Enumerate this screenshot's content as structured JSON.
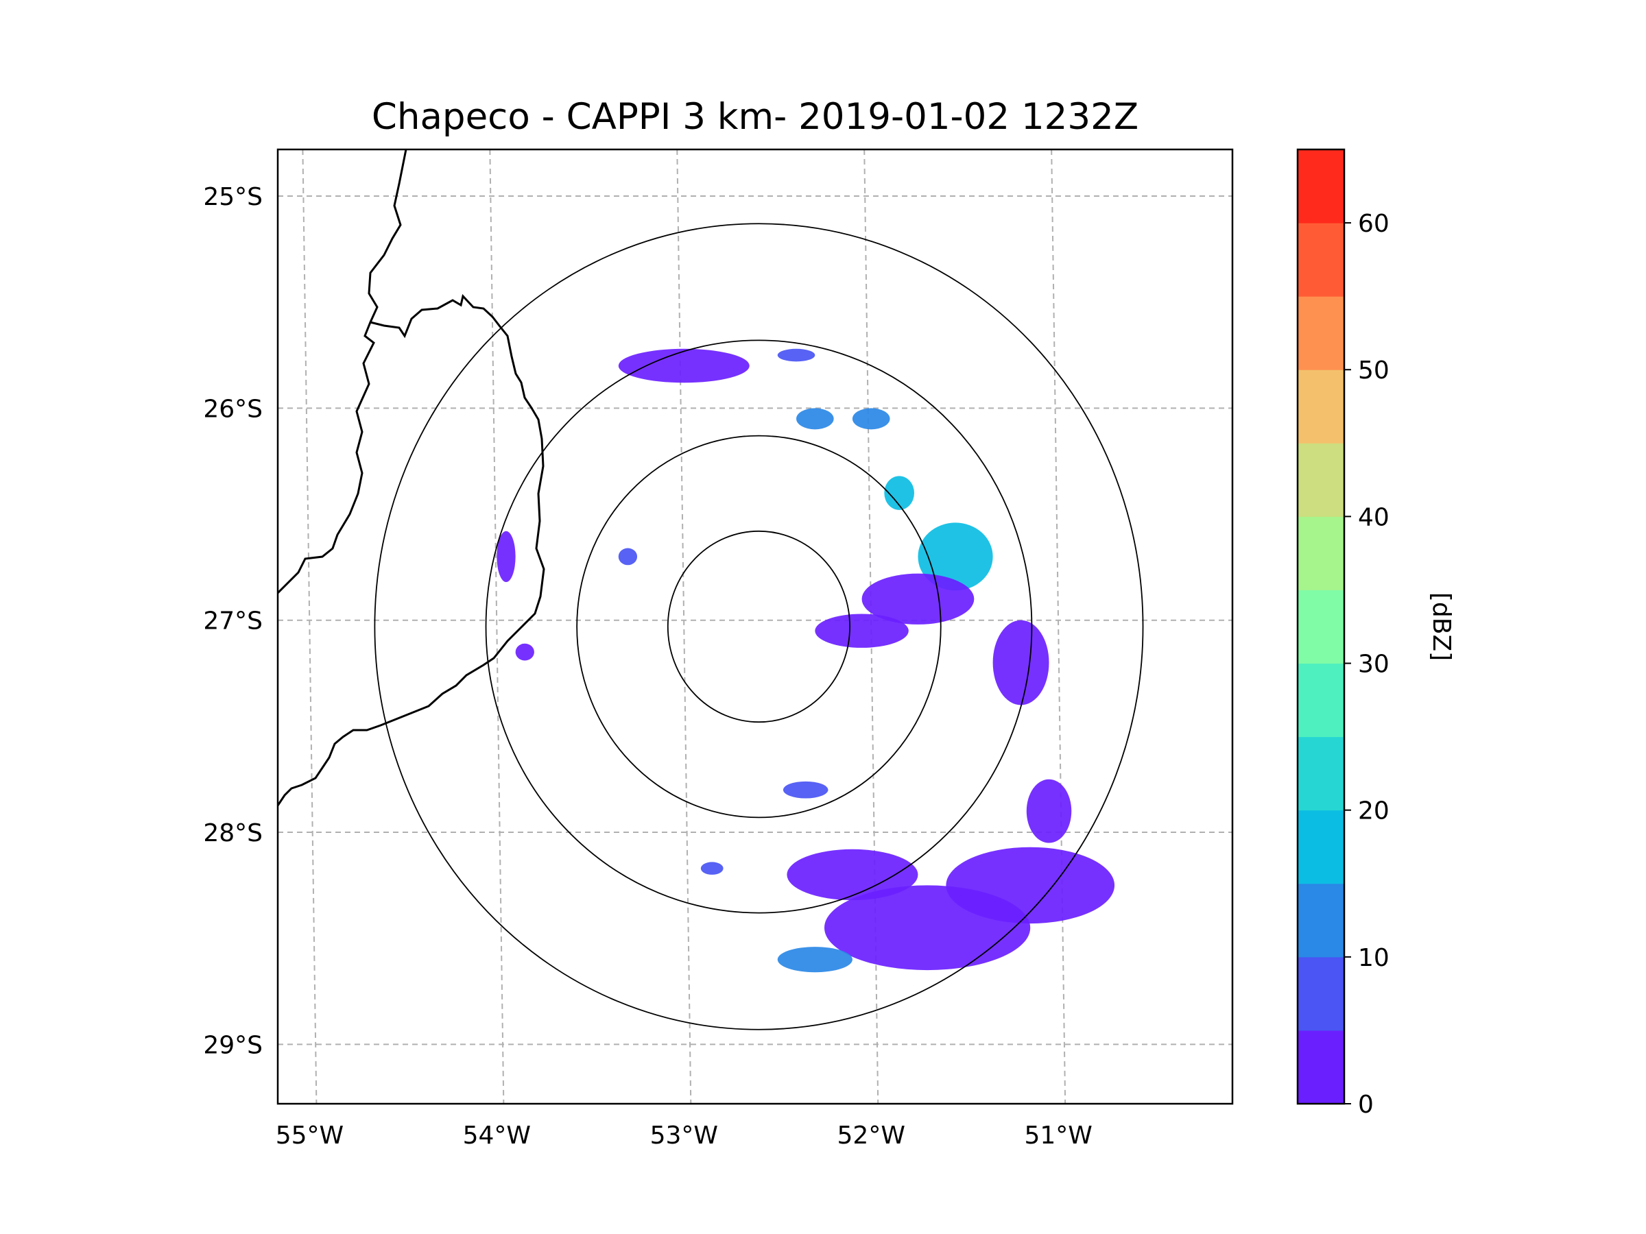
{
  "chart_data": {
    "type": "radar-map",
    "title": "Chapeco - CAPPI 3 km- 2019-01-02 1232Z",
    "radar_center": {
      "lon": -52.6,
      "lat": -27.03
    },
    "range_rings_deg": [
      0.45,
      0.9,
      1.35,
      1.9
    ],
    "x_ticks": [
      {
        "label": "55°W",
        "lon": -55
      },
      {
        "label": "54°W",
        "lon": -54
      },
      {
        "label": "53°W",
        "lon": -53
      },
      {
        "label": "52°W",
        "lon": -52
      },
      {
        "label": "51°W",
        "lon": -51
      }
    ],
    "y_ticks": [
      {
        "label": "25°S",
        "lat": -25
      },
      {
        "label": "26°S",
        "lat": -26
      },
      {
        "label": "27°S",
        "lat": -27
      },
      {
        "label": "28°S",
        "lat": -28
      },
      {
        "label": "29°S",
        "lat": -29
      }
    ],
    "xlim": [
      -55.17,
      -50.07
    ],
    "ylim": [
      -29.28,
      -24.78
    ],
    "colorbar": {
      "label": "[dBZ]",
      "range": [
        0,
        65
      ],
      "tick_labels": [
        "0",
        "10",
        "20",
        "30",
        "40",
        "50",
        "60"
      ],
      "tick_values": [
        0,
        10,
        20,
        30,
        40,
        50,
        60
      ],
      "bins": [
        {
          "from": 0,
          "to": 5,
          "color": "#6a1fff"
        },
        {
          "from": 5,
          "to": 10,
          "color": "#4a55f3"
        },
        {
          "from": 10,
          "to": 15,
          "color": "#2a88e6"
        },
        {
          "from": 15,
          "to": 20,
          "color": "#0cbde3"
        },
        {
          "from": 20,
          "to": 25,
          "color": "#26d6d3"
        },
        {
          "from": 25,
          "to": 30,
          "color": "#4ff0c0"
        },
        {
          "from": 30,
          "to": 35,
          "color": "#80fca6"
        },
        {
          "from": 35,
          "to": 40,
          "color": "#a5f48c"
        },
        {
          "from": 40,
          "to": 45,
          "color": "#ccde7f"
        },
        {
          "from": 45,
          "to": 50,
          "color": "#f4c06b"
        },
        {
          "from": 50,
          "to": 55,
          "color": "#ff9150"
        },
        {
          "from": 55,
          "to": 60,
          "color": "#ff5c35"
        },
        {
          "from": 60,
          "to": 65,
          "color": "#ff2a1c"
        }
      ]
    },
    "echo_regions": [
      {
        "lon": -51.15,
        "lat": -28.25,
        "rx": 0.45,
        "ry": 0.18,
        "dbz": 3
      },
      {
        "lon": -51.7,
        "lat": -28.45,
        "rx": 0.55,
        "ry": 0.2,
        "dbz": 3
      },
      {
        "lon": -52.1,
        "lat": -28.2,
        "rx": 0.35,
        "ry": 0.12,
        "dbz": 2
      },
      {
        "lon": -52.3,
        "lat": -28.6,
        "rx": 0.2,
        "ry": 0.06,
        "dbz": 12
      },
      {
        "lon": -51.55,
        "lat": -26.7,
        "rx": 0.2,
        "ry": 0.16,
        "dbz": 18
      },
      {
        "lon": -51.75,
        "lat": -26.9,
        "rx": 0.3,
        "ry": 0.12,
        "dbz": 3
      },
      {
        "lon": -52.05,
        "lat": -27.05,
        "rx": 0.25,
        "ry": 0.08,
        "dbz": 3
      },
      {
        "lon": -51.85,
        "lat": -26.4,
        "rx": 0.08,
        "ry": 0.08,
        "dbz": 15
      },
      {
        "lon": -52.0,
        "lat": -26.05,
        "rx": 0.1,
        "ry": 0.05,
        "dbz": 12
      },
      {
        "lon": -52.3,
        "lat": -26.05,
        "rx": 0.1,
        "ry": 0.05,
        "dbz": 10
      },
      {
        "lon": -52.35,
        "lat": -27.8,
        "rx": 0.12,
        "ry": 0.04,
        "dbz": 8
      },
      {
        "lon": -53.0,
        "lat": -25.8,
        "rx": 0.35,
        "ry": 0.08,
        "dbz": 2
      },
      {
        "lon": -52.4,
        "lat": -25.75,
        "rx": 0.1,
        "ry": 0.03,
        "dbz": 6
      },
      {
        "lon": -53.3,
        "lat": -26.7,
        "rx": 0.05,
        "ry": 0.04,
        "dbz": 8
      },
      {
        "lon": -52.85,
        "lat": -28.17,
        "rx": 0.06,
        "ry": 0.03,
        "dbz": 6
      },
      {
        "lon": -51.05,
        "lat": -27.9,
        "rx": 0.12,
        "ry": 0.15,
        "dbz": 2
      },
      {
        "lon": -51.2,
        "lat": -27.2,
        "rx": 0.15,
        "ry": 0.2,
        "dbz": 2
      },
      {
        "lon": -53.85,
        "lat": -27.15,
        "rx": 0.05,
        "ry": 0.04,
        "dbz": 2
      },
      {
        "lon": -53.95,
        "lat": -26.7,
        "rx": 0.05,
        "ry": 0.12,
        "dbz": 2
      }
    ]
  }
}
